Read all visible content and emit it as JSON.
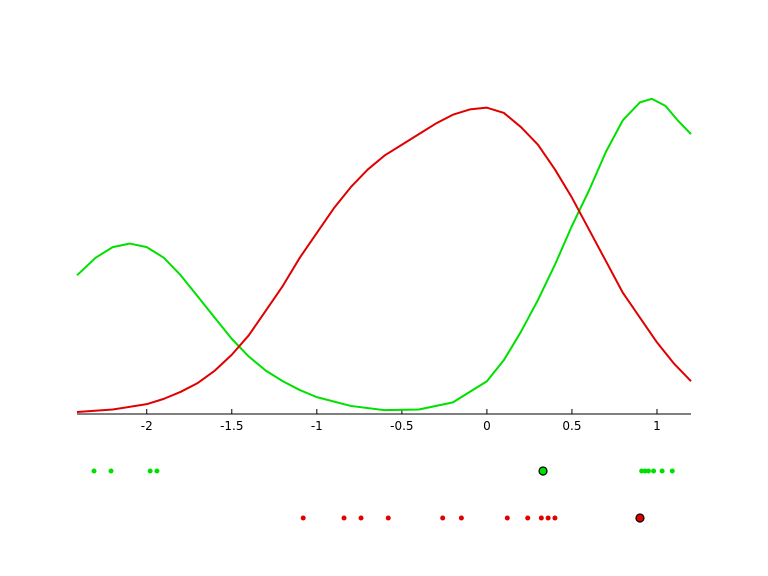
{
  "chart_data": {
    "type": "density",
    "xlim": [
      -2.41,
      1.2
    ],
    "ylim": [
      0,
      1
    ],
    "xticks": [
      -2,
      -1.5,
      -1,
      -0.5,
      0,
      0.5,
      1
    ],
    "series": [
      {
        "color": "#00e000",
        "x": [
          -2.41,
          -2.3,
          -2.2,
          -2.1,
          -2.0,
          -1.9,
          -1.8,
          -1.7,
          -1.6,
          -1.5,
          -1.4,
          -1.3,
          -1.2,
          -1.1,
          -1.0,
          -0.8,
          -0.6,
          -0.4,
          -0.2,
          0,
          0.1,
          0.2,
          0.3,
          0.4,
          0.5,
          0.6,
          0.7,
          0.8,
          0.9,
          0.97,
          1.05,
          1.12,
          1.2
        ],
        "values": [
          0.39,
          0.44,
          0.47,
          0.48,
          0.47,
          0.44,
          0.39,
          0.33,
          0.27,
          0.21,
          0.16,
          0.12,
          0.09,
          0.065,
          0.045,
          0.02,
          0.008,
          0.01,
          0.03,
          0.09,
          0.15,
          0.23,
          0.32,
          0.42,
          0.53,
          0.63,
          0.74,
          0.83,
          0.88,
          0.89,
          0.87,
          0.83,
          0.79
        ],
        "points": [
          -2.31,
          -2.21,
          -1.98,
          -1.94,
          0.91,
          0.93,
          0.95,
          0.98,
          1.03,
          1.09
        ],
        "highlight": 0.33
      },
      {
        "color": "#e00000",
        "x": [
          -2.41,
          -2.2,
          -2.0,
          -1.9,
          -1.8,
          -1.7,
          -1.6,
          -1.5,
          -1.4,
          -1.3,
          -1.2,
          -1.1,
          -1.0,
          -0.9,
          -0.8,
          -0.7,
          -0.6,
          -0.5,
          -0.4,
          -0.3,
          -0.2,
          -0.1,
          0,
          0.1,
          0.2,
          0.3,
          0.4,
          0.5,
          0.6,
          0.7,
          0.8,
          0.9,
          1.0,
          1.1,
          1.2
        ],
        "values": [
          0.003,
          0.01,
          0.025,
          0.04,
          0.06,
          0.085,
          0.12,
          0.165,
          0.22,
          0.29,
          0.36,
          0.44,
          0.51,
          0.58,
          0.64,
          0.69,
          0.73,
          0.76,
          0.79,
          0.82,
          0.845,
          0.86,
          0.865,
          0.85,
          0.81,
          0.76,
          0.69,
          0.61,
          0.52,
          0.43,
          0.34,
          0.27,
          0.2,
          0.14,
          0.09
        ],
        "points": [
          -1.08,
          -0.84,
          -0.74,
          -0.58,
          -0.26,
          -0.15,
          0.12,
          0.24,
          0.32,
          0.36,
          0.4
        ],
        "highlight": 0.9
      }
    ]
  }
}
